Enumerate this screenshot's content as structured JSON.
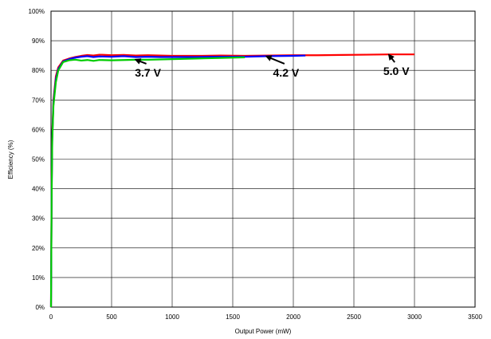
{
  "chart_data": {
    "type": "line",
    "xlabel": "Output Power (mW)",
    "ylabel": "Efficiency (%)",
    "xlim": [
      0,
      3500
    ],
    "ylim": [
      0,
      100
    ],
    "x_ticks": [
      0,
      500,
      1000,
      1500,
      2000,
      2500,
      3000,
      3500
    ],
    "y_ticks": [
      0,
      10,
      20,
      30,
      40,
      50,
      60,
      70,
      80,
      90,
      100
    ],
    "y_tick_labels": [
      "0%",
      "10%",
      "20%",
      "30%",
      "40%",
      "50%",
      "60%",
      "70%",
      "80%",
      "90%",
      "100%"
    ],
    "grid": true,
    "series": [
      {
        "color": "#ff0000",
        "x": [
          0,
          5,
          10,
          20,
          40,
          60,
          100,
          150,
          200,
          250,
          300,
          350,
          400,
          500,
          600,
          700,
          800,
          900,
          1000,
          1200,
          1400,
          1600,
          1800,
          2000,
          2200,
          2400,
          2600,
          2800,
          3000
        ],
        "y": [
          0,
          40,
          58,
          70,
          78,
          81,
          83.3,
          84.0,
          84.5,
          84.9,
          85.2,
          85.0,
          85.3,
          85.1,
          85.2,
          85.0,
          85.1,
          85.0,
          84.9,
          84.9,
          85.0,
          84.9,
          85.0,
          85.1,
          85.1,
          85.2,
          85.3,
          85.4,
          85.4
        ]
      },
      {
        "color": "#0000ff",
        "x": [
          0,
          5,
          10,
          20,
          40,
          60,
          100,
          150,
          200,
          250,
          300,
          350,
          400,
          500,
          600,
          700,
          800,
          900,
          1000,
          1200,
          1400,
          1600,
          1800,
          2000,
          2100
        ],
        "y": [
          0,
          38,
          57,
          69,
          77,
          80.5,
          83.0,
          83.8,
          84.3,
          84.6,
          84.8,
          84.5,
          84.7,
          84.6,
          84.8,
          84.5,
          84.6,
          84.5,
          84.5,
          84.5,
          84.6,
          84.6,
          84.8,
          84.9,
          85.0
        ]
      },
      {
        "color": "#00cc00",
        "x": [
          0,
          5,
          10,
          20,
          40,
          60,
          100,
          150,
          200,
          250,
          300,
          350,
          400,
          500,
          600,
          700,
          800,
          900,
          1000,
          1200,
          1400,
          1600
        ],
        "y": [
          0,
          36,
          56,
          68,
          76,
          80,
          82.8,
          83.4,
          83.6,
          83.3,
          83.5,
          83.2,
          83.5,
          83.4,
          83.5,
          83.6,
          83.6,
          83.7,
          83.8,
          84.0,
          84.2,
          84.4
        ]
      }
    ],
    "annotations": [
      {
        "text": "3.7 V",
        "label_x": 800,
        "label_y": 79,
        "arrow_to_x": 700,
        "arrow_to_y": 83.6
      },
      {
        "text": "4.2 V",
        "label_x": 1940,
        "label_y": 79,
        "arrow_to_x": 1780,
        "arrow_to_y": 84.7
      },
      {
        "text": "5.0 V",
        "label_x": 2850,
        "label_y": 79.5,
        "arrow_to_x": 2790,
        "arrow_to_y": 85.2
      }
    ]
  }
}
